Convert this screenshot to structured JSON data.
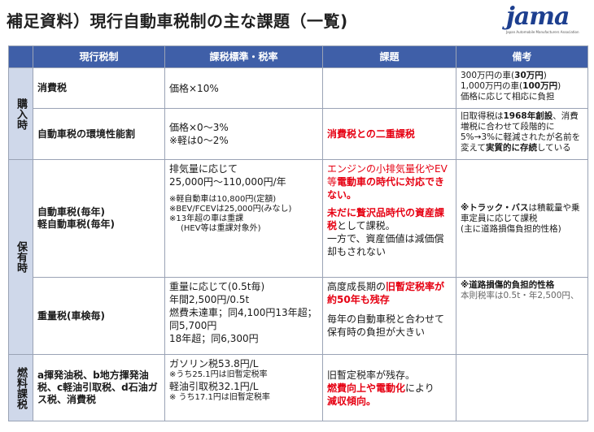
{
  "title": "補足資料）現行自動車税制の主な課題（一覧)",
  "logo": {
    "text": "jama",
    "sub": "Japan Automobile Manufacturers Association"
  },
  "headers": {
    "corner": "",
    "name": "現行税制",
    "standard": "課税標準・税率",
    "issue": "課題",
    "remarks": "備考"
  },
  "sections": {
    "purchase": "購入時",
    "hold": "保有時",
    "fuel": "燃料課税"
  },
  "rows": {
    "r1": {
      "name": "消費税",
      "std1": "価格×10%",
      "issue": "",
      "rem1": "300万円の車(",
      "rem1b": "30万円",
      "rem1c": ")",
      "rem2": "1,000万円の車(",
      "rem2b": "100万円",
      "rem2c": ")",
      "rem3": "価格に応じて相応に負担"
    },
    "r2": {
      "name": "自動車税の環境性能割",
      "std1": "価格×0～3%",
      "std2": "※軽は0～2%",
      "issue": "消費税との二重課税",
      "rem_a": "旧取得税は",
      "rem_b": "1968年創設",
      "rem_c": "、消費増税に合わせて段階的に5%→3%に軽減されたが名前を変えて",
      "rem_d": "実質的に存続",
      "rem_e": "している"
    },
    "r3": {
      "name1": "自動車税(毎年)",
      "name2": "軽自動車税(毎年)",
      "std1": "排気量に応じて",
      "std2": "25,000円～110,000円/年",
      "s1": "※軽自動車は10,800円(定額)",
      "s2": "※BEV/FCEVは25,000円(みなし)",
      "s3": "※13年超の車は重課",
      "s4": "(HEV等は重課対象外)",
      "issue1": "エンジンの小排気量化やEV等",
      "issue2": "電動車の時代に対応できない。",
      "issue3": "未だに贅沢品時代の資産課税",
      "issue4": "として課税。",
      "issue5": "一方で、資産価値は減価償却もされない",
      "rem_a": "※トラック・バス",
      "rem_b": "は積載量や乗車定員に応じて課税",
      "rem_c": "(主に道路損傷負担的性格)"
    },
    "r4": {
      "name": "重量税(車検毎)",
      "std1": "重量に応じて(0.5t毎)",
      "std2": "年間2,500円/0.5t",
      "std3": "燃費未達車；同4,100円13年超；同5,700円",
      "std4": "18年超；同6,300円",
      "issue1": "高度成長期の",
      "issue2": "旧暫定税率が約50年も残存",
      "issue3": "毎年の自動車税と合わせて保有時の負担が大きい",
      "rem1": "※道路損傷的負担的性格",
      "rem2": "本則税率は0.5t・年2,500円、"
    },
    "r5": {
      "name": "a揮発油税、b地方揮発油税、c軽油引取税、d石油ガス税、消費税",
      "std1": "ガソリン税53.8円/L",
      "s1": "※うち25.1円は旧暫定税率",
      "std2": "軽油引取税32.1円/L",
      "s2": "※ うち17.1円は旧暫定税率",
      "issue1": "旧暫定税率が残存。",
      "issue2": "燃費向上や電動化",
      "issue3": "により",
      "issue4": "減収傾向。",
      "rem": ""
    }
  }
}
